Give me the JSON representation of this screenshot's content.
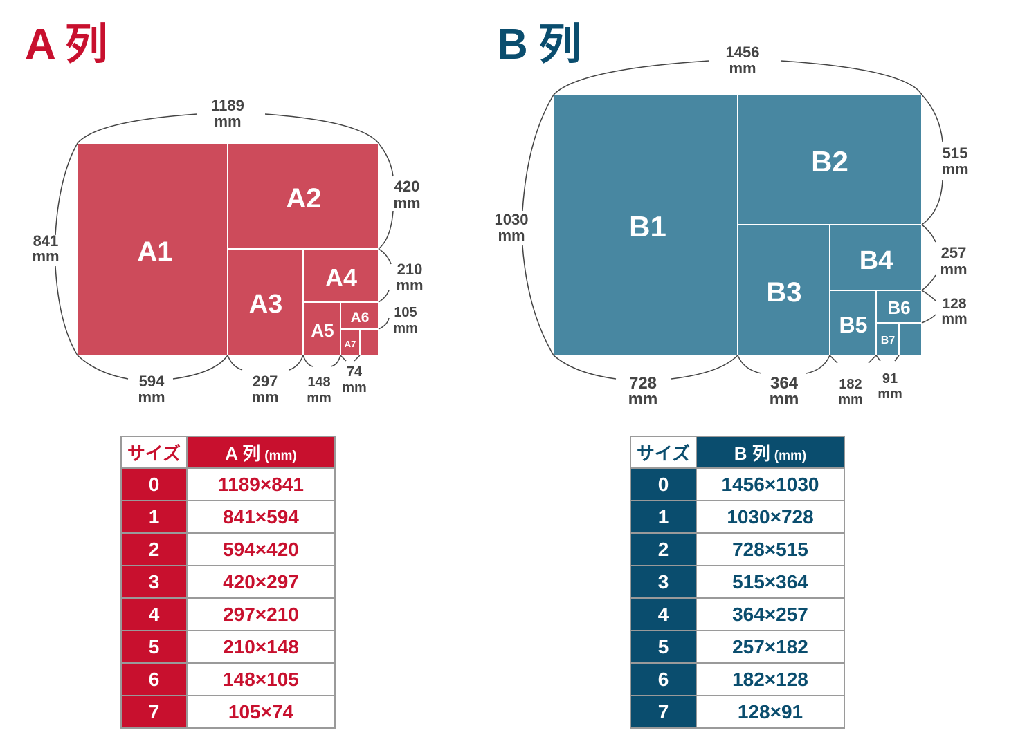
{
  "a_series": {
    "title": "A 列",
    "color": "#c8102e",
    "fill": "#cd4b5b",
    "labels": {
      "a1": "A1",
      "a2": "A2",
      "a3": "A3",
      "a4": "A4",
      "a5": "A5",
      "a6": "A6",
      "a7": "A7"
    },
    "dims": {
      "top": [
        "1189",
        "mm"
      ],
      "left": [
        "841",
        "mm"
      ],
      "r1": [
        "420",
        "mm"
      ],
      "r2": [
        "210",
        "mm"
      ],
      "r3": [
        "105",
        "mm"
      ],
      "b1": [
        "594",
        "mm"
      ],
      "b2": [
        "297",
        "mm"
      ],
      "b3": [
        "148",
        "mm"
      ],
      "b4": [
        "74",
        "mm"
      ]
    },
    "table": {
      "size_header": "サイズ",
      "series_header": "A 列",
      "unit_header": "(mm)",
      "rows": [
        {
          "size": "0",
          "value": "1189×841"
        },
        {
          "size": "1",
          "value": "841×594"
        },
        {
          "size": "2",
          "value": "594×420"
        },
        {
          "size": "3",
          "value": "420×297"
        },
        {
          "size": "4",
          "value": "297×210"
        },
        {
          "size": "5",
          "value": "210×148"
        },
        {
          "size": "6",
          "value": "148×105"
        },
        {
          "size": "7",
          "value": "105×74"
        }
      ]
    }
  },
  "b_series": {
    "title": "B 列",
    "color": "#0a4d6e",
    "fill": "#4887a1",
    "labels": {
      "b1": "B1",
      "b2": "B2",
      "b3": "B3",
      "b4": "B4",
      "b5": "B5",
      "b6": "B6",
      "b7": "B7"
    },
    "dims": {
      "top": [
        "1456",
        "mm"
      ],
      "left": [
        "1030",
        "mm"
      ],
      "r1": [
        "515",
        "mm"
      ],
      "r2": [
        "257",
        "mm"
      ],
      "r3": [
        "128",
        "mm"
      ],
      "b1": [
        "728",
        "mm"
      ],
      "b2": [
        "364",
        "mm"
      ],
      "b3": [
        "182",
        "mm"
      ],
      "b4": [
        "91",
        "mm"
      ]
    },
    "table": {
      "size_header": "サイズ",
      "series_header": "B 列",
      "unit_header": "(mm)",
      "rows": [
        {
          "size": "0",
          "value": "1456×1030"
        },
        {
          "size": "1",
          "value": "1030×728"
        },
        {
          "size": "2",
          "value": "728×515"
        },
        {
          "size": "3",
          "value": "515×364"
        },
        {
          "size": "4",
          "value": "364×257"
        },
        {
          "size": "5",
          "value": "257×182"
        },
        {
          "size": "6",
          "value": "182×128"
        },
        {
          "size": "7",
          "value": "128×91"
        }
      ]
    }
  }
}
